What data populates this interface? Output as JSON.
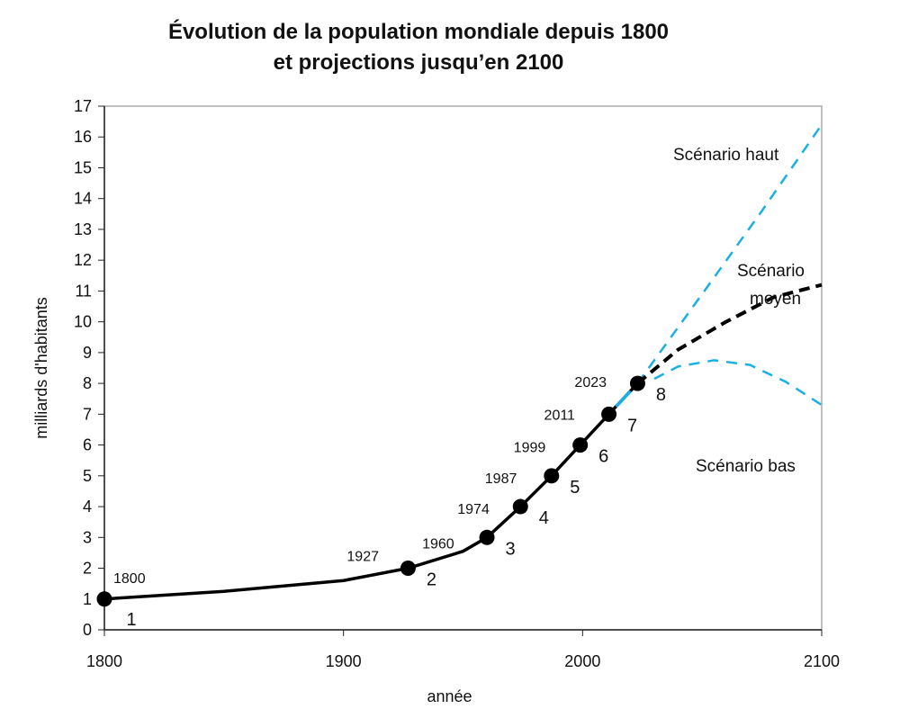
{
  "chart_data": {
    "type": "line",
    "title_line1": "Évolution de la population mondiale depuis 1800",
    "title_line2": "et projections jusqu’en 2100",
    "xlabel": "année",
    "ylabel": "milliards d'habitants",
    "xlim": [
      1800,
      2100
    ],
    "ylim": [
      0,
      17
    ],
    "x_ticks": [
      "1800",
      "1900",
      "2000",
      "2100"
    ],
    "y_ticks": [
      "0",
      "1",
      "2",
      "3",
      "4",
      "5",
      "6",
      "7",
      "8",
      "9",
      "10",
      "11",
      "12",
      "13",
      "14",
      "15",
      "16",
      "17"
    ],
    "grid": false,
    "milestones": [
      {
        "year": 1800,
        "value": 1,
        "year_label": "1800",
        "value_label": "1"
      },
      {
        "year": 1927,
        "value": 2,
        "year_label": "1927",
        "value_label": "2"
      },
      {
        "year": 1960,
        "value": 3,
        "year_label": "1960",
        "value_label": "3"
      },
      {
        "year": 1974,
        "value": 4,
        "year_label": "1974",
        "value_label": "4"
      },
      {
        "year": 1987,
        "value": 5,
        "year_label": "1987",
        "value_label": "5"
      },
      {
        "year": 1999,
        "value": 6,
        "year_label": "1999",
        "value_label": "6"
      },
      {
        "year": 2011,
        "value": 7,
        "year_label": "2011",
        "value_label": "7"
      },
      {
        "year": 2023,
        "value": 8,
        "year_label": "2023",
        "value_label": "8"
      }
    ],
    "history": {
      "x": [
        1800,
        1850,
        1900,
        1927,
        1950,
        1960,
        1974,
        1987,
        1999,
        2011,
        2023
      ],
      "y": [
        1,
        1.25,
        1.6,
        2,
        2.55,
        3,
        4,
        5,
        6,
        7,
        8
      ],
      "color": "#000000"
    },
    "series": [
      {
        "name": "Scénario haut",
        "color": "#1ab0e6",
        "x": [
          2023,
          2050,
          2075,
          2100
        ],
        "y": [
          8,
          10.9,
          13.6,
          16.4
        ]
      },
      {
        "name": "Scénario moyen",
        "color": "#000000",
        "x": [
          2023,
          2040,
          2060,
          2080,
          2100
        ],
        "y": [
          8,
          9.1,
          10.0,
          10.8,
          11.2
        ]
      },
      {
        "name": "Scénario bas",
        "color": "#1ab0e6",
        "x": [
          2030,
          2040,
          2055,
          2070,
          2085,
          2100
        ],
        "y": [
          8.15,
          8.55,
          8.75,
          8.6,
          8.05,
          7.3
        ]
      }
    ],
    "scenario_labels": {
      "haut": "Scénario haut",
      "moyen_1": "Scénario",
      "moyen_2": "moyen",
      "bas": "Scénario bas"
    }
  }
}
